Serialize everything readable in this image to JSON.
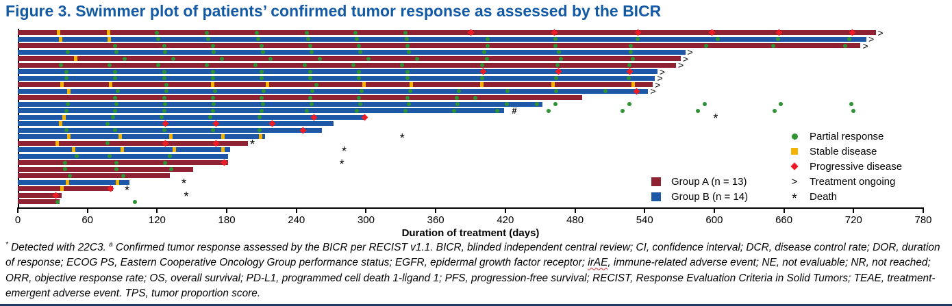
{
  "title": "Figure 3. Swimmer plot of patients’ confirmed tumor response as assessed by the BICR",
  "colors": {
    "title_blue": "#1259a6",
    "group_a": "#8f2232",
    "group_b": "#1d57a5",
    "pr_green": "#2e9332",
    "sd_yellow": "#f3b300",
    "pd_red": "#ed1c24",
    "bottom_border": "#1f3864",
    "axis_black": "#000000"
  },
  "axis": {
    "title": "Duration of treatment (days)",
    "ticks": [
      0,
      60,
      120,
      180,
      240,
      300,
      360,
      420,
      480,
      540,
      600,
      660,
      720,
      780
    ],
    "max": 780
  },
  "legend_markers": {
    "items": [
      {
        "key": "pr",
        "label": "Partial response"
      },
      {
        "key": "sd",
        "label": "Stable disease"
      },
      {
        "key": "pd",
        "label": "Progressive disease"
      },
      {
        "key": "ongoing",
        "label": "Treatment ongoing",
        "glyph": ">"
      },
      {
        "key": "death",
        "label": "Death",
        "glyph": "*"
      }
    ]
  },
  "legend_groups": {
    "items": [
      {
        "key": "A",
        "label": "Group A (n = 13)"
      },
      {
        "key": "B",
        "label": "Group B (n = 14)"
      }
    ]
  },
  "footnote": {
    "sup1": "*",
    "seg1": " Detected with 22C3. ",
    "sup2": "a",
    "seg2": " Confirmed tumor response assessed by the BICR per RECIST v1.1. BICR, blinded independent central review; CI, confidence interval; DCR, disease control rate; DOR, duration of response; ECOG PS, Eastern Cooperative Oncology Group performance status; EGFR, epidermal growth factor receptor; ",
    "squiggle_word": "irAE",
    "seg3": ", immune-related adverse event; NE, not evaluable; NR, not reached; ORR, objective response rate; OS, overall survival; PD-L1, programmed cell death 1-ligand 1; PFS, progression-free survival; RECIST, Response Evaluation Criteria in Solid Tumors; TEAE, treatment-emergent adverse event. TPS, tumor proportion score."
  },
  "chart_data": {
    "type": "swimmer-bar",
    "xlabel": "Duration of treatment (days)",
    "xlim": [
      0,
      780
    ],
    "marker_meaning": {
      "pr": "partial response",
      "sd": "stable disease",
      "pd": "progressive disease",
      "post_pr": "partial response after treatment end",
      "death": "death day",
      "hash": "annotation #"
    },
    "patients": [
      {
        "group": "A",
        "days": 739,
        "ongoing": true,
        "sd": [
          35,
          78
        ],
        "pr": [
          120,
          163,
          206,
          249,
          291,
          334
        ],
        "pd": [
          390,
          462,
          534,
          598,
          656,
          719
        ]
      },
      {
        "group": "B",
        "days": 731,
        "ongoing": true,
        "sd": [
          37,
          79
        ],
        "pr": [
          121,
          164,
          207,
          250,
          292,
          335,
          405,
          463,
          534,
          603,
          655,
          716
        ]
      },
      {
        "group": "A",
        "days": 726,
        "ongoing": true,
        "pr": [
          84,
          126,
          168,
          210,
          252,
          294,
          336,
          405,
          463,
          528,
          593,
          651,
          713
        ]
      },
      {
        "group": "B",
        "days": 575,
        "ongoing": true,
        "pr": [
          43,
          85,
          127,
          169,
          211,
          253,
          295,
          337,
          402,
          466,
          528
        ]
      },
      {
        "group": "A",
        "days": 571,
        "ongoing": true,
        "sd": [
          50
        ],
        "pr": [
          92,
          134,
          176,
          218,
          260,
          302,
          344,
          404,
          468,
          530
        ]
      },
      {
        "group": "A",
        "days": 567,
        "ongoing": true,
        "pr": [
          37,
          79,
          121,
          163,
          205,
          247,
          289,
          331,
          400,
          465,
          527
        ]
      },
      {
        "group": "B",
        "days": 551,
        "ongoing": true,
        "pr": [
          42,
          84,
          126,
          168,
          210,
          252,
          294,
          336
        ],
        "pd": [
          401,
          466,
          527
        ]
      },
      {
        "group": "B",
        "days": 549,
        "ongoing": true,
        "pr": [
          42,
          84,
          126,
          168,
          210,
          252,
          294,
          336,
          400,
          464,
          526
        ]
      },
      {
        "group": "A",
        "days": 547,
        "ongoing": true,
        "sd": [
          38,
          80,
          168,
          215,
          298,
          339,
          400,
          461,
          530
        ],
        "pr": [
          128,
          257
        ]
      },
      {
        "group": "B",
        "days": 543,
        "ongoing": true,
        "sd": [
          44
        ],
        "pr": [
          86,
          128,
          170,
          212,
          254,
          296,
          338,
          380,
          422,
          464,
          506
        ],
        "pd": [
          533
        ]
      },
      {
        "group": "A",
        "days": 486,
        "pr": [
          84,
          126,
          168,
          210,
          252,
          294,
          336,
          378,
          394
        ]
      },
      {
        "group": "B",
        "days": 452,
        "pr": [
          43,
          85,
          127,
          169,
          211,
          253,
          295,
          337,
          379,
          421,
          447
        ],
        "post_pr": [
          463,
          527,
          592,
          657,
          718
        ]
      },
      {
        "group": "B",
        "days": 419,
        "hash": 428,
        "pr": [
          42,
          84,
          126,
          168,
          210,
          249,
          292,
          334,
          376,
          413
        ],
        "post_pr": [
          457,
          521,
          586,
          652,
          720
        ]
      },
      {
        "group": "B",
        "days": 299,
        "sd": [
          40
        ],
        "pr": [
          82,
          124,
          166,
          208
        ],
        "pd": [
          255,
          299
        ],
        "death": 602
      },
      {
        "group": "B",
        "days": 272,
        "sd": [
          37
        ],
        "pr": [
          77
        ],
        "pd": [
          127,
          171,
          219
        ]
      },
      {
        "group": "B",
        "days": 262,
        "pr": [
          42,
          84,
          126,
          168,
          208
        ],
        "pd": [
          246
        ]
      },
      {
        "group": "B",
        "days": 213,
        "sd": [
          44,
          88,
          132,
          177,
          209
        ],
        "death": 332
      },
      {
        "group": "A",
        "days": 198,
        "sd": [
          34
        ],
        "pr": [
          77
        ],
        "pd": [
          127,
          171
        ],
        "death": 203
      },
      {
        "group": "B",
        "days": 183,
        "sd": [
          48,
          90,
          135,
          177
        ],
        "death": 282
      },
      {
        "group": "B",
        "days": 181,
        "pr": [
          51,
          79,
          131
        ]
      },
      {
        "group": "A",
        "days": 181,
        "pr": [
          41,
          85,
          127
        ],
        "pd": [
          178
        ],
        "death": 280
      },
      {
        "group": "A",
        "days": 151,
        "pr": [
          41,
          85,
          132
        ]
      },
      {
        "group": "A",
        "days": 131,
        "pr": [
          45,
          91
        ]
      },
      {
        "group": "B",
        "days": 96,
        "sd": [
          43,
          86
        ],
        "death": 144
      },
      {
        "group": "A",
        "days": 82,
        "sd": [
          38
        ],
        "pd": [
          80
        ],
        "death": 95
      },
      {
        "group": "A",
        "days": 38,
        "pd": [
          33
        ],
        "death": 146
      },
      {
        "group": "A",
        "days": 36,
        "pr": [
          34
        ],
        "post_pr": [
          101
        ]
      }
    ]
  }
}
